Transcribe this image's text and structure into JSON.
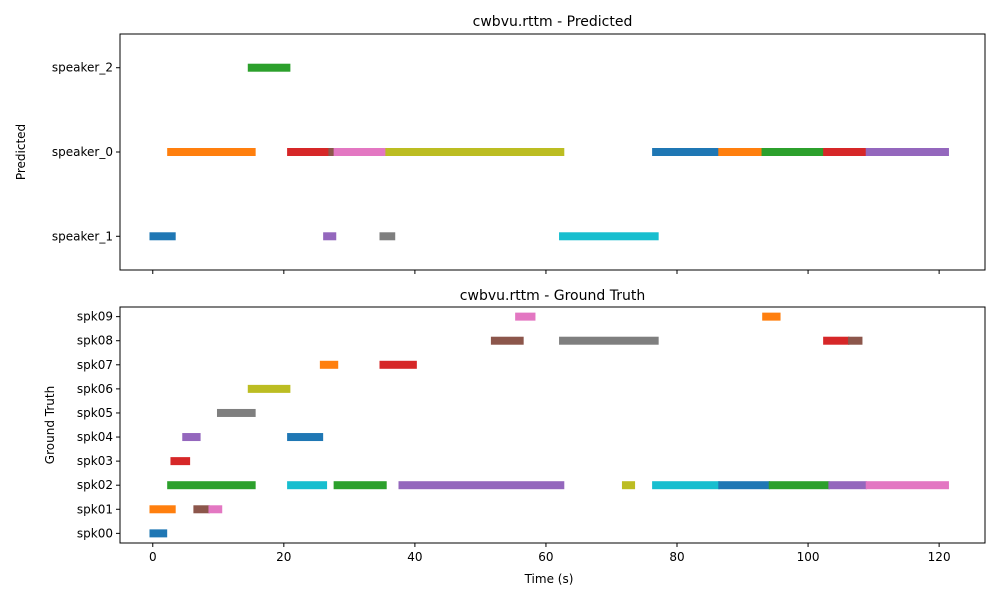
{
  "chart_data": [
    {
      "type": "gantt",
      "title": "cwbvu.rttm - Predicted",
      "ylabel": "Predicted",
      "xlabel": "",
      "xlim": [
        -5,
        127
      ],
      "x_ticks": [
        0,
        20,
        40,
        60,
        80,
        100,
        120
      ],
      "x_tick_labels_visible": false,
      "y_categories": [
        "speaker_1",
        "speaker_0",
        "speaker_2"
      ],
      "segments": [
        {
          "speaker": "speaker_1",
          "start": -0.5,
          "end": 3.5,
          "color": "#1f77b4"
        },
        {
          "speaker": "speaker_0",
          "start": 2.2,
          "end": 15.7,
          "color": "#ff7f0e"
        },
        {
          "speaker": "speaker_2",
          "start": 14.5,
          "end": 21.0,
          "color": "#2ca02c"
        },
        {
          "speaker": "speaker_0",
          "start": 20.5,
          "end": 27.0,
          "color": "#d62728"
        },
        {
          "speaker": "speaker_1",
          "start": 26.0,
          "end": 28.0,
          "color": "#9467bd"
        },
        {
          "speaker": "speaker_0",
          "start": 26.8,
          "end": 27.8,
          "color": "#8c564b"
        },
        {
          "speaker": "speaker_0",
          "start": 27.6,
          "end": 35.7,
          "color": "#e377c2"
        },
        {
          "speaker": "speaker_1",
          "start": 34.6,
          "end": 37.0,
          "color": "#7f7f7f"
        },
        {
          "speaker": "speaker_0",
          "start": 35.5,
          "end": 62.8,
          "color": "#bcbd22"
        },
        {
          "speaker": "speaker_1",
          "start": 62.0,
          "end": 77.2,
          "color": "#17becf"
        },
        {
          "speaker": "speaker_0",
          "start": 76.2,
          "end": 86.5,
          "color": "#1f77b4"
        },
        {
          "speaker": "speaker_0",
          "start": 86.3,
          "end": 93.0,
          "color": "#ff7f0e"
        },
        {
          "speaker": "speaker_0",
          "start": 92.9,
          "end": 102.5,
          "color": "#2ca02c"
        },
        {
          "speaker": "speaker_0",
          "start": 102.3,
          "end": 109.0,
          "color": "#d62728"
        },
        {
          "speaker": "speaker_0",
          "start": 108.8,
          "end": 121.5,
          "color": "#9467bd"
        }
      ]
    },
    {
      "type": "gantt",
      "title": "cwbvu.rttm - Ground Truth",
      "ylabel": "Ground Truth",
      "xlabel": "Time (s)",
      "xlim": [
        -5,
        127
      ],
      "x_ticks": [
        0,
        20,
        40,
        60,
        80,
        100,
        120
      ],
      "x_tick_labels_visible": true,
      "y_categories": [
        "spk00",
        "spk01",
        "spk02",
        "spk03",
        "spk04",
        "spk05",
        "spk06",
        "spk07",
        "spk08",
        "spk09"
      ],
      "segments": [
        {
          "speaker": "spk00",
          "start": -0.5,
          "end": 2.2,
          "color": "#1f77b4"
        },
        {
          "speaker": "spk01",
          "start": -0.5,
          "end": 3.5,
          "color": "#ff7f0e"
        },
        {
          "speaker": "spk02",
          "start": 2.2,
          "end": 15.7,
          "color": "#2ca02c"
        },
        {
          "speaker": "spk03",
          "start": 2.7,
          "end": 5.7,
          "color": "#d62728"
        },
        {
          "speaker": "spk04",
          "start": 4.5,
          "end": 7.3,
          "color": "#9467bd"
        },
        {
          "speaker": "spk01",
          "start": 6.2,
          "end": 8.7,
          "color": "#8c564b"
        },
        {
          "speaker": "spk01",
          "start": 8.5,
          "end": 10.6,
          "color": "#e377c2"
        },
        {
          "speaker": "spk05",
          "start": 9.8,
          "end": 15.7,
          "color": "#7f7f7f"
        },
        {
          "speaker": "spk06",
          "start": 14.5,
          "end": 21.0,
          "color": "#bcbd22"
        },
        {
          "speaker": "spk02",
          "start": 20.5,
          "end": 26.6,
          "color": "#17becf"
        },
        {
          "speaker": "spk04",
          "start": 20.5,
          "end": 26.0,
          "color": "#1f77b4"
        },
        {
          "speaker": "spk07",
          "start": 25.5,
          "end": 28.3,
          "color": "#ff7f0e"
        },
        {
          "speaker": "spk02",
          "start": 27.6,
          "end": 35.7,
          "color": "#2ca02c"
        },
        {
          "speaker": "spk07",
          "start": 34.6,
          "end": 40.3,
          "color": "#d62728"
        },
        {
          "speaker": "spk02",
          "start": 37.5,
          "end": 62.8,
          "color": "#9467bd"
        },
        {
          "speaker": "spk08",
          "start": 51.6,
          "end": 56.6,
          "color": "#8c564b"
        },
        {
          "speaker": "spk09",
          "start": 55.3,
          "end": 58.4,
          "color": "#e377c2"
        },
        {
          "speaker": "spk08",
          "start": 62.0,
          "end": 77.2,
          "color": "#7f7f7f"
        },
        {
          "speaker": "spk02",
          "start": 71.6,
          "end": 73.6,
          "color": "#bcbd22"
        },
        {
          "speaker": "spk02",
          "start": 76.2,
          "end": 86.5,
          "color": "#17becf"
        },
        {
          "speaker": "spk02",
          "start": 86.3,
          "end": 94.2,
          "color": "#1f77b4"
        },
        {
          "speaker": "spk09",
          "start": 93.0,
          "end": 95.8,
          "color": "#ff7f0e"
        },
        {
          "speaker": "spk02",
          "start": 94.0,
          "end": 103.3,
          "color": "#2ca02c"
        },
        {
          "speaker": "spk08",
          "start": 102.3,
          "end": 106.3,
          "color": "#d62728"
        },
        {
          "speaker": "spk02",
          "start": 103.1,
          "end": 109.0,
          "color": "#9467bd"
        },
        {
          "speaker": "spk08",
          "start": 106.1,
          "end": 108.3,
          "color": "#8c564b"
        },
        {
          "speaker": "spk02",
          "start": 108.8,
          "end": 121.5,
          "color": "#e377c2"
        }
      ]
    }
  ],
  "colors": {
    "axes": "#000000",
    "background": "#ffffff"
  }
}
